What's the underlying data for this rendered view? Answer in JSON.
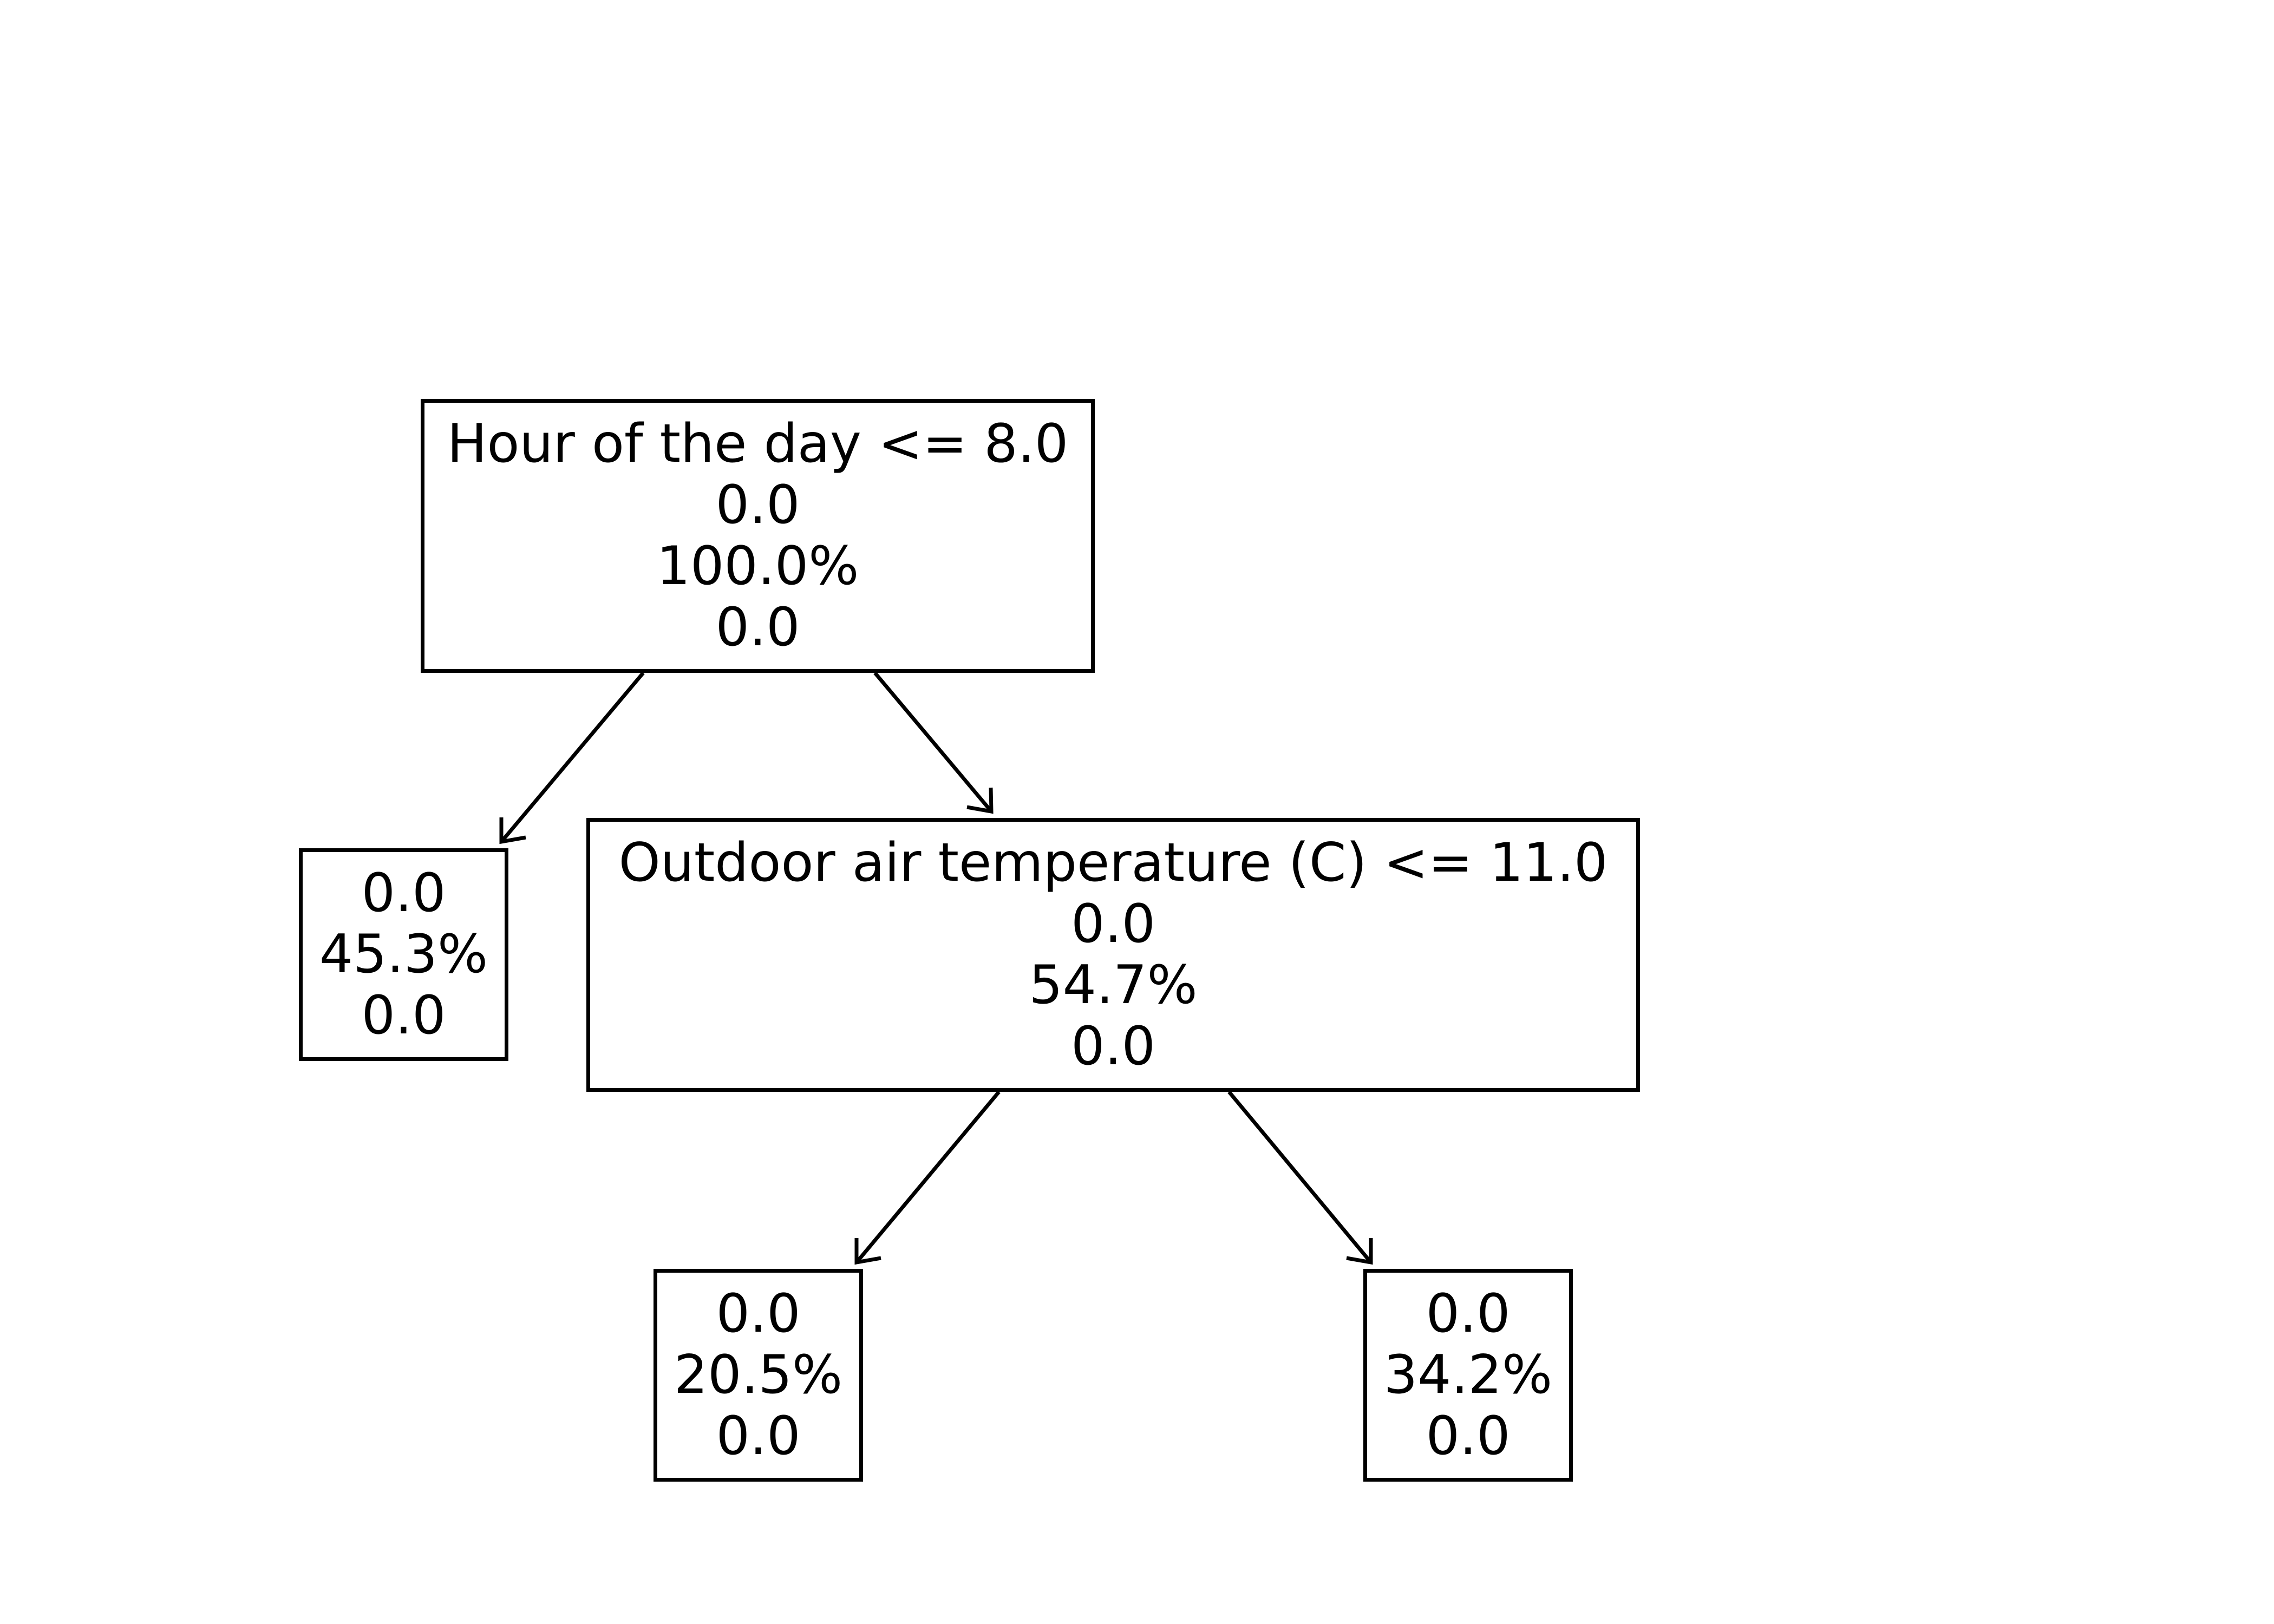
{
  "diagram": {
    "root": {
      "condition": "Hour of the day <= 8.0",
      "lines": [
        "0.0",
        "100.0%",
        "0.0"
      ]
    },
    "split": {
      "condition": "Outdoor air temperature (C) <= 11.0",
      "lines": [
        "0.0",
        "54.7%",
        "0.0"
      ]
    },
    "leaf_left": {
      "lines": [
        "0.0",
        "45.3%",
        "0.0"
      ]
    },
    "leaf_mid": {
      "lines": [
        "0.0",
        "20.5%",
        "0.0"
      ]
    },
    "leaf_right": {
      "lines": [
        "0.0",
        "34.2%",
        "0.0"
      ]
    }
  }
}
